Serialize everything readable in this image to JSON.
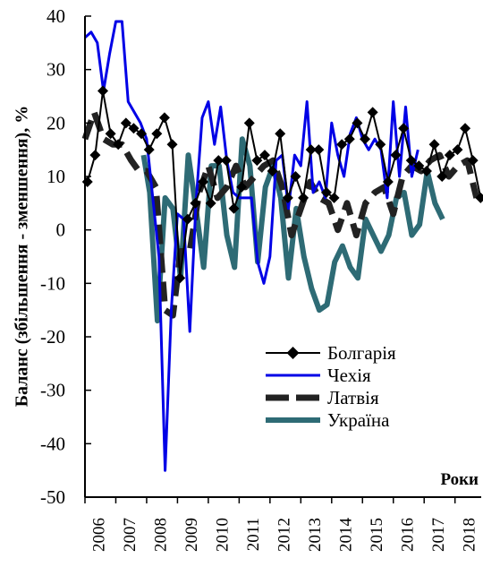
{
  "chart_data": {
    "type": "line",
    "xlabel": "Роки",
    "ylabel": "Баланс (збільшення - зменшення), %",
    "ylim": [
      -50,
      40
    ],
    "yticks": [
      40,
      30,
      20,
      10,
      0,
      -10,
      -20,
      -30,
      -40,
      -50
    ],
    "xlim": [
      2006,
      2018.85
    ],
    "xticks": [
      "2006",
      "2007",
      "2008",
      "2009",
      "2010",
      "2011",
      "2012",
      "2013",
      "2014",
      "2015",
      "2016",
      "2017",
      "2018"
    ],
    "grid": false,
    "legend_position": "bottom-right",
    "series": [
      {
        "name": "Болгарія",
        "color": "#000000",
        "style": "line-diamond",
        "points": [
          [
            2006.08,
            9
          ],
          [
            2006.33,
            14
          ],
          [
            2006.58,
            26
          ],
          [
            2006.83,
            18
          ],
          [
            2007.08,
            16
          ],
          [
            2007.33,
            20
          ],
          [
            2007.58,
            19
          ],
          [
            2007.83,
            18
          ],
          [
            2008.08,
            15
          ],
          [
            2008.33,
            18
          ],
          [
            2008.58,
            21
          ],
          [
            2008.83,
            16
          ],
          [
            2009.08,
            -9
          ],
          [
            2009.33,
            2
          ],
          [
            2009.58,
            5
          ],
          [
            2009.83,
            9
          ],
          [
            2010.08,
            5
          ],
          [
            2010.33,
            13
          ],
          [
            2010.58,
            13
          ],
          [
            2010.83,
            4
          ],
          [
            2011.08,
            8
          ],
          [
            2011.33,
            20
          ],
          [
            2011.58,
            13
          ],
          [
            2011.83,
            14
          ],
          [
            2012.08,
            11
          ],
          [
            2012.33,
            18
          ],
          [
            2012.58,
            6
          ],
          [
            2012.83,
            10
          ],
          [
            2013.08,
            6
          ],
          [
            2013.33,
            15
          ],
          [
            2013.58,
            15
          ],
          [
            2013.83,
            7
          ],
          [
            2014.08,
            6
          ],
          [
            2014.33,
            16
          ],
          [
            2014.58,
            17
          ],
          [
            2014.83,
            20
          ],
          [
            2015.08,
            17
          ],
          [
            2015.33,
            22
          ],
          [
            2015.58,
            16
          ],
          [
            2015.83,
            9
          ],
          [
            2016.08,
            14
          ],
          [
            2016.33,
            19
          ],
          [
            2016.58,
            13
          ],
          [
            2016.83,
            12
          ],
          [
            2017.08,
            11
          ],
          [
            2017.33,
            16
          ],
          [
            2017.58,
            10
          ],
          [
            2017.83,
            14
          ],
          [
            2018.08,
            15
          ],
          [
            2018.33,
            19
          ],
          [
            2018.58,
            13
          ],
          [
            2018.83,
            6
          ]
        ]
      },
      {
        "name": "Чехія",
        "color": "#0000e6",
        "style": "line",
        "points": [
          [
            2006.0,
            36
          ],
          [
            2006.2,
            37
          ],
          [
            2006.4,
            35
          ],
          [
            2006.6,
            26
          ],
          [
            2006.8,
            33
          ],
          [
            2007.0,
            39
          ],
          [
            2007.2,
            39
          ],
          [
            2007.4,
            24
          ],
          [
            2007.6,
            22
          ],
          [
            2007.8,
            20
          ],
          [
            2008.0,
            17
          ],
          [
            2008.2,
            6
          ],
          [
            2008.4,
            -5
          ],
          [
            2008.6,
            -45
          ],
          [
            2008.8,
            -15
          ],
          [
            2009.0,
            3
          ],
          [
            2009.2,
            2
          ],
          [
            2009.4,
            -19
          ],
          [
            2009.6,
            5
          ],
          [
            2009.8,
            21
          ],
          [
            2010.0,
            24
          ],
          [
            2010.2,
            16
          ],
          [
            2010.4,
            23
          ],
          [
            2010.6,
            13
          ],
          [
            2010.8,
            7
          ],
          [
            2011.0,
            6
          ],
          [
            2011.2,
            6
          ],
          [
            2011.4,
            6
          ],
          [
            2011.6,
            -6
          ],
          [
            2011.8,
            -10
          ],
          [
            2012.0,
            -5
          ],
          [
            2012.2,
            13
          ],
          [
            2012.4,
            14
          ],
          [
            2012.6,
            4
          ],
          [
            2012.8,
            14
          ],
          [
            2013.0,
            12
          ],
          [
            2013.2,
            24
          ],
          [
            2013.4,
            7
          ],
          [
            2013.6,
            9
          ],
          [
            2013.8,
            6
          ],
          [
            2014.0,
            20
          ],
          [
            2014.2,
            14
          ],
          [
            2014.4,
            10
          ],
          [
            2014.6,
            18
          ],
          [
            2014.8,
            21
          ],
          [
            2015.0,
            17
          ],
          [
            2015.2,
            15
          ],
          [
            2015.4,
            17
          ],
          [
            2015.6,
            15
          ],
          [
            2015.8,
            6
          ],
          [
            2016.0,
            24
          ],
          [
            2016.2,
            10
          ],
          [
            2016.4,
            23
          ],
          [
            2016.6,
            10
          ],
          [
            2016.8,
            15
          ]
        ]
      },
      {
        "name": "Латвія",
        "color": "#222222",
        "style": "dashed",
        "points": [
          [
            2006.0,
            17
          ],
          [
            2006.3,
            22
          ],
          [
            2006.6,
            17
          ],
          [
            2006.9,
            16
          ],
          [
            2007.2,
            16
          ],
          [
            2007.5,
            13
          ],
          [
            2007.75,
            11
          ],
          [
            2008.0,
            11
          ],
          [
            2008.3,
            8
          ],
          [
            2008.6,
            -15
          ],
          [
            2008.85,
            -16
          ],
          [
            2009.1,
            -4
          ],
          [
            2009.4,
            -4
          ],
          [
            2009.7,
            7
          ],
          [
            2010.0,
            12
          ],
          [
            2010.3,
            6
          ],
          [
            2010.6,
            8
          ],
          [
            2010.9,
            12
          ],
          [
            2011.2,
            8
          ],
          [
            2011.5,
            10
          ],
          [
            2011.8,
            12
          ],
          [
            2012.1,
            13
          ],
          [
            2012.4,
            8
          ],
          [
            2012.7,
            -1
          ],
          [
            2013.0,
            4
          ],
          [
            2013.3,
            9
          ],
          [
            2013.6,
            6
          ],
          [
            2013.9,
            5
          ],
          [
            2014.2,
            0
          ],
          [
            2014.5,
            5
          ],
          [
            2014.8,
            -1
          ],
          [
            2015.1,
            5
          ],
          [
            2015.4,
            7
          ],
          [
            2015.7,
            8
          ],
          [
            2016.0,
            3
          ],
          [
            2016.3,
            10
          ],
          [
            2016.6,
            12
          ],
          [
            2016.9,
            11
          ],
          [
            2017.2,
            13
          ],
          [
            2017.5,
            14
          ],
          [
            2017.8,
            10
          ],
          [
            2018.1,
            12
          ],
          [
            2018.4,
            13
          ],
          [
            2018.7,
            6
          ]
        ]
      },
      {
        "name": "Україна",
        "color": "#2e6b75",
        "style": "thick-line",
        "points": [
          [
            2007.9,
            14
          ],
          [
            2008.1,
            7
          ],
          [
            2008.35,
            -17
          ],
          [
            2008.6,
            6
          ],
          [
            2008.85,
            4
          ],
          [
            2009.1,
            -9
          ],
          [
            2009.35,
            14
          ],
          [
            2009.6,
            4
          ],
          [
            2009.85,
            -7
          ],
          [
            2010.1,
            12
          ],
          [
            2010.35,
            12
          ],
          [
            2010.6,
            -1
          ],
          [
            2010.85,
            -7
          ],
          [
            2011.1,
            17
          ],
          [
            2011.35,
            12
          ],
          [
            2011.6,
            -6
          ],
          [
            2011.85,
            8
          ],
          [
            2012.1,
            12
          ],
          [
            2012.35,
            6
          ],
          [
            2012.6,
            -9
          ],
          [
            2012.85,
            4
          ],
          [
            2013.1,
            -5
          ],
          [
            2013.35,
            -11
          ],
          [
            2013.6,
            -15
          ],
          [
            2013.85,
            -14
          ],
          [
            2014.1,
            -6
          ],
          [
            2014.35,
            -3
          ],
          [
            2014.6,
            -7
          ],
          [
            2014.85,
            -9
          ],
          [
            2015.1,
            2
          ],
          [
            2015.35,
            -1
          ],
          [
            2015.6,
            -4
          ],
          [
            2015.85,
            -1
          ],
          [
            2016.1,
            6
          ],
          [
            2016.35,
            7
          ],
          [
            2016.6,
            -1
          ],
          [
            2016.85,
            1
          ],
          [
            2017.1,
            11
          ],
          [
            2017.35,
            5
          ],
          [
            2017.6,
            2
          ]
        ]
      }
    ]
  }
}
